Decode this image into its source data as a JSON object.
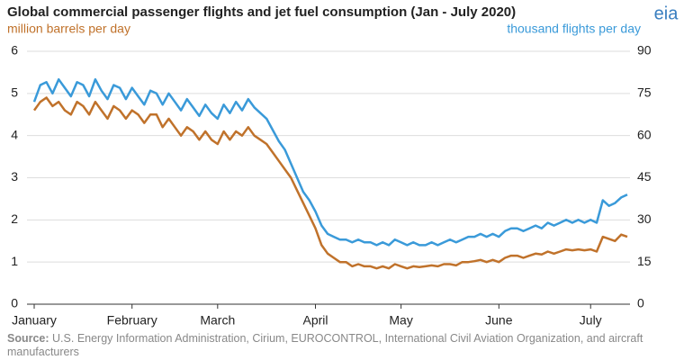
{
  "chart_data": {
    "type": "line",
    "title": "Global commercial passenger flights and jet fuel consumption (Jan - July 2020)",
    "y_label": "million barrels per day",
    "y2_label": "thousand flights per day",
    "logo": "eia",
    "source_label": "Source:",
    "source": "U.S. Energy Information Administration, Cirium, EUROCONTROL, International Civil Aviation Organization, and aircraft manufacturers",
    "categories": [
      "January",
      null,
      null,
      null,
      null,
      null,
      null,
      null,
      null,
      null,
      null,
      null,
      null,
      null,
      null,
      null,
      "February",
      null,
      null,
      null,
      null,
      null,
      null,
      null,
      null,
      null,
      null,
      null,
      null,
      null,
      "March",
      null,
      null,
      null,
      null,
      null,
      null,
      null,
      null,
      null,
      null,
      null,
      null,
      null,
      null,
      null,
      "April",
      null,
      null,
      null,
      null,
      null,
      null,
      null,
      null,
      null,
      null,
      null,
      null,
      null,
      "May",
      null,
      null,
      null,
      null,
      null,
      null,
      null,
      null,
      null,
      null,
      null,
      null,
      null,
      null,
      null,
      "June",
      null,
      null,
      null,
      null,
      null,
      null,
      null,
      null,
      null,
      null,
      null,
      null,
      null,
      null,
      "July",
      null,
      null,
      null,
      null,
      null,
      null
    ],
    "series": [
      {
        "name": "jet fuel consumption",
        "color": "#c0722b",
        "axis": "y",
        "values": [
          4.6,
          4.8,
          4.9,
          4.7,
          4.8,
          4.6,
          4.5,
          4.8,
          4.7,
          4.5,
          4.8,
          4.6,
          4.4,
          4.7,
          4.6,
          4.4,
          4.6,
          4.5,
          4.3,
          4.5,
          4.5,
          4.2,
          4.4,
          4.2,
          4.0,
          4.2,
          4.1,
          3.9,
          4.1,
          3.9,
          3.8,
          4.1,
          3.9,
          4.1,
          4.0,
          4.2,
          4.0,
          3.9,
          3.8,
          3.6,
          3.4,
          3.2,
          3.0,
          2.7,
          2.4,
          2.1,
          1.8,
          1.4,
          1.2,
          1.1,
          1.0,
          1.0,
          0.9,
          0.95,
          0.9,
          0.9,
          0.85,
          0.9,
          0.85,
          0.95,
          0.9,
          0.85,
          0.9,
          0.88,
          0.9,
          0.92,
          0.9,
          0.95,
          0.95,
          0.92,
          1.0,
          1.0,
          1.02,
          1.05,
          1.0,
          1.05,
          1.0,
          1.1,
          1.15,
          1.15,
          1.1,
          1.15,
          1.2,
          1.18,
          1.25,
          1.2,
          1.25,
          1.3,
          1.28,
          1.3,
          1.28,
          1.3,
          1.25,
          1.6,
          1.55,
          1.5,
          1.65,
          1.6
        ]
      },
      {
        "name": "commercial passenger flights",
        "color": "#3a9ad9",
        "axis": "y2",
        "values": [
          72,
          78,
          79,
          75,
          80,
          77,
          74,
          79,
          78,
          74,
          80,
          76,
          73,
          78,
          77,
          73,
          77,
          74,
          71,
          76,
          75,
          71,
          75,
          72,
          69,
          73,
          70,
          67,
          71,
          68,
          66,
          71,
          68,
          72,
          69,
          73,
          70,
          68,
          66,
          62,
          58,
          55,
          50,
          45,
          40,
          37,
          33,
          28,
          25,
          24,
          23,
          23,
          22,
          23,
          22,
          22,
          21,
          22,
          21,
          23,
          22,
          21,
          22,
          21,
          21,
          22,
          21,
          22,
          23,
          22,
          23,
          24,
          24,
          25,
          24,
          25,
          24,
          26,
          27,
          27,
          26,
          27,
          28,
          27,
          29,
          28,
          29,
          30,
          29,
          30,
          29,
          30,
          29,
          37,
          35,
          36,
          38,
          39
        ]
      }
    ],
    "ylim": [
      0,
      6
    ],
    "yticks": [
      0,
      1,
      2,
      3,
      4,
      5,
      6
    ],
    "y2lim": [
      0,
      90
    ],
    "y2ticks": [
      0,
      15,
      30,
      45,
      60,
      75,
      90
    ],
    "grid": true
  }
}
